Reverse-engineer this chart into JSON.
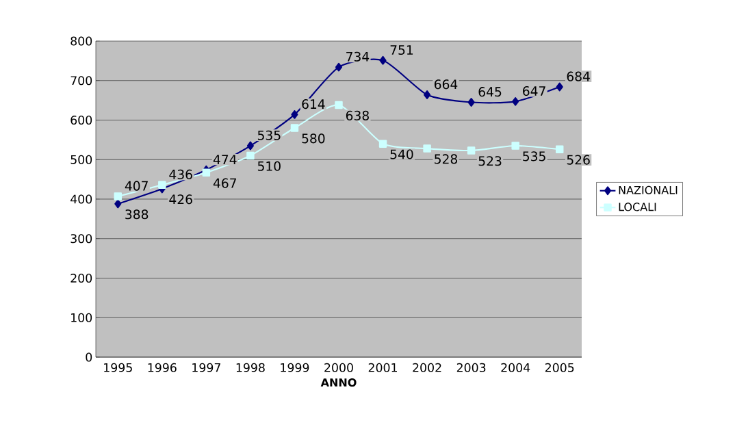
{
  "chart_data": {
    "type": "line",
    "xlabel": "ANNO",
    "categories": [
      "1995",
      "1996",
      "1997",
      "1998",
      "1999",
      "2000",
      "2001",
      "2002",
      "2003",
      "2004",
      "2005"
    ],
    "series": [
      {
        "name": "NAZIONALI",
        "color": "#000080",
        "marker": "diamond",
        "values": [
          388,
          426,
          474,
          535,
          614,
          734,
          751,
          664,
          645,
          647,
          684
        ]
      },
      {
        "name": "LOCALI",
        "color": "#ccffff",
        "marker": "square",
        "values": [
          407,
          436,
          467,
          510,
          580,
          638,
          540,
          528,
          523,
          535,
          526
        ]
      }
    ],
    "ylim": [
      0,
      800
    ],
    "yticks": [
      0,
      100,
      200,
      300,
      400,
      500,
      600,
      700,
      800
    ],
    "grid": "y",
    "legend": "right",
    "data_labels": true
  }
}
